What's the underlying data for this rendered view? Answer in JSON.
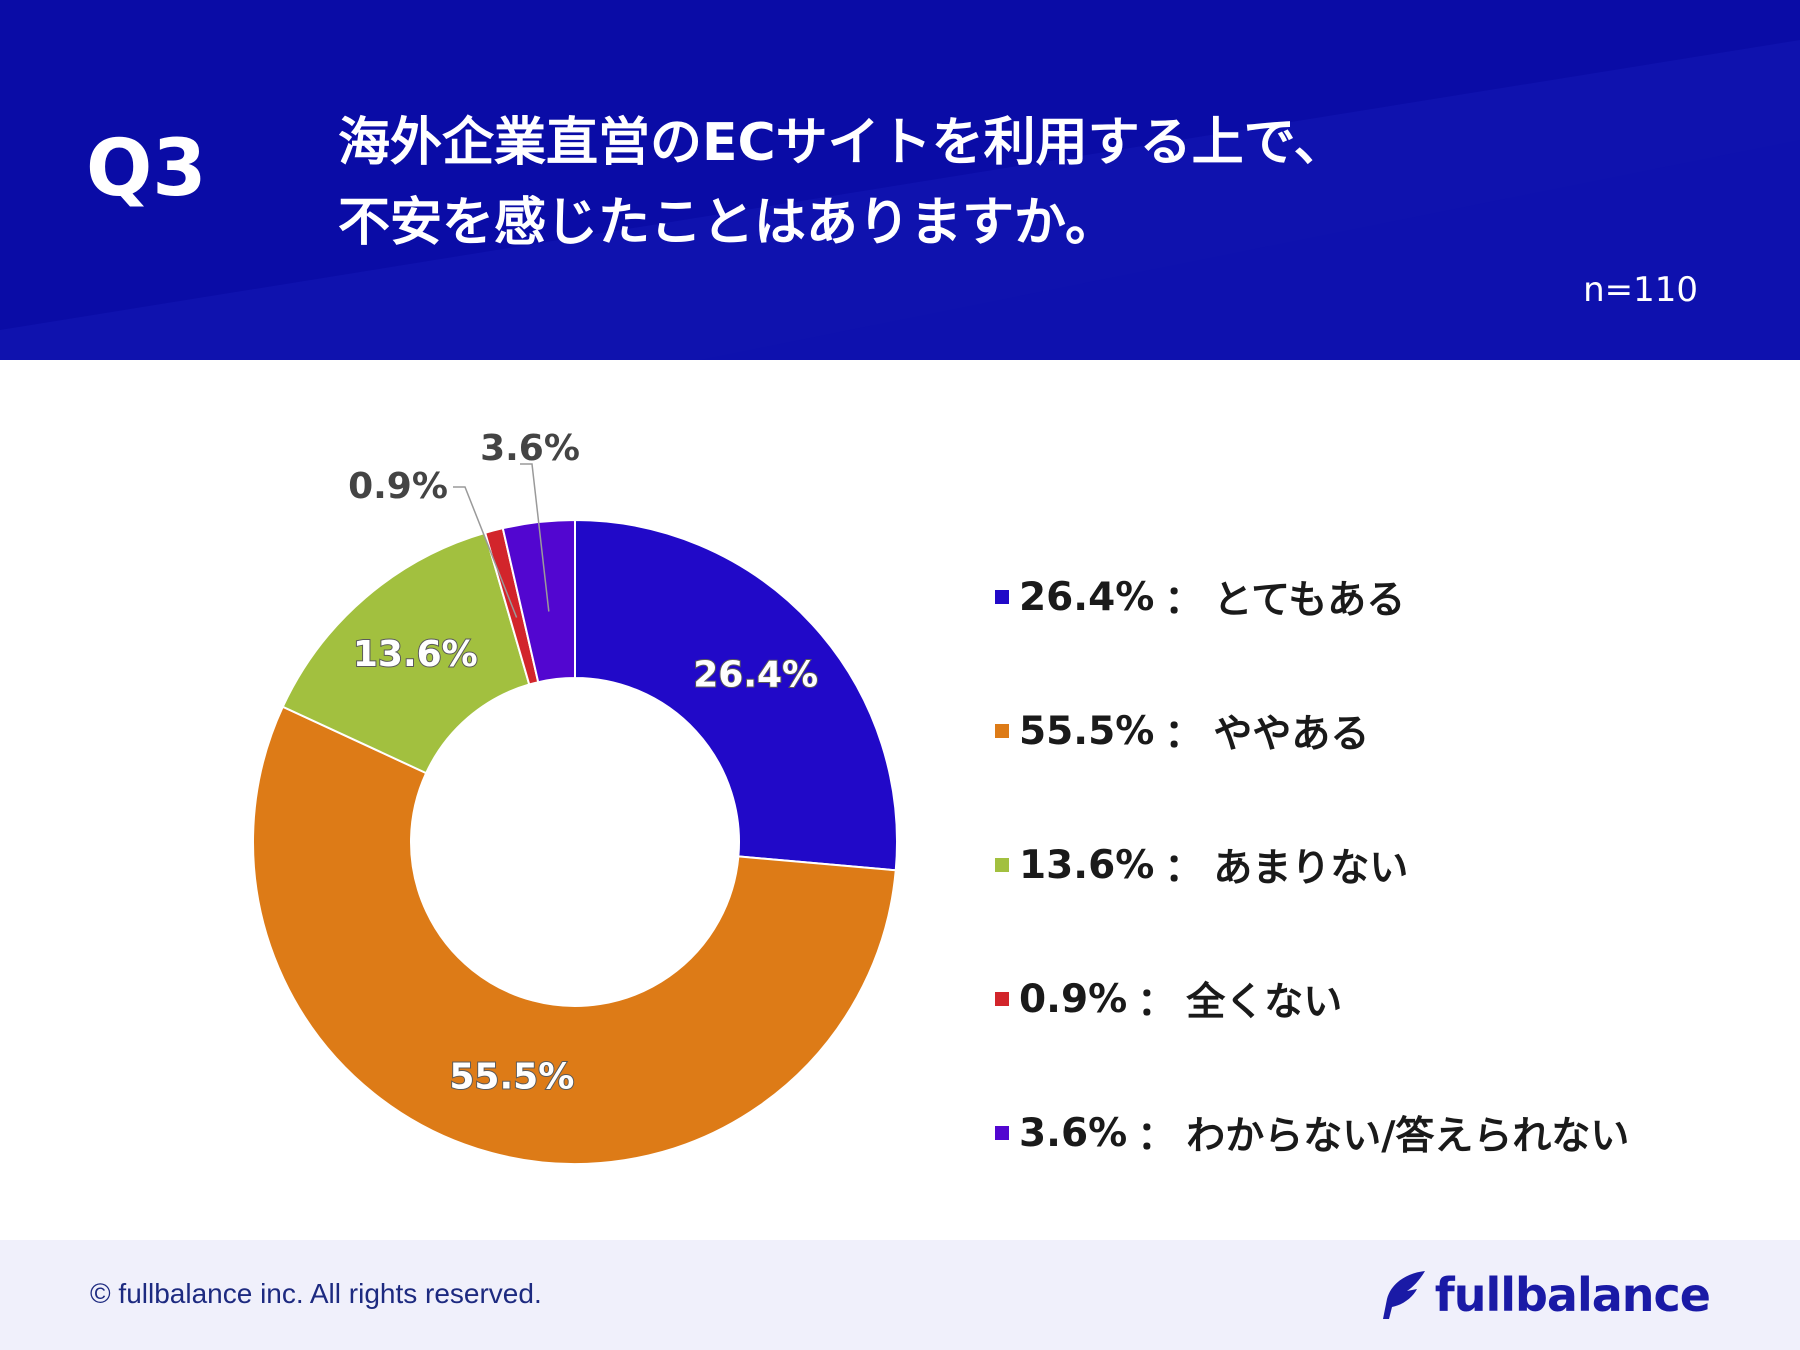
{
  "header": {
    "question_label": "Q3",
    "title_lines": [
      "海外企業直営のECサイトを利用する上で、",
      "不安を感じたことはありますか。"
    ],
    "sample_size": "n=110"
  },
  "colors": {
    "header_bg": "#0a0ca6",
    "footer_bg": "#f0f0fb",
    "brand": "#1a1aa6"
  },
  "chart_data": {
    "type": "pie",
    "variant": "donut",
    "title": "海外企業直営のECサイトを利用する上で、不安を感じたことはありますか。",
    "slices": [
      {
        "label": "とてもある",
        "value": 26.4,
        "display": "26.4%",
        "legend": "26.4%",
        "name": "とてもある",
        "color": "#2109c8",
        "label_inside": true
      },
      {
        "label": "ややある",
        "value": 55.5,
        "display": "55.5%",
        "legend": "55.5%",
        "name": "ややある",
        "color": "#dd7b17",
        "label_inside": true
      },
      {
        "label": "あまりない",
        "value": 13.6,
        "display": "13.6%",
        "legend": "13.6%",
        "name": "あまりない",
        "color": "#a2c03f",
        "label_inside": true
      },
      {
        "label": "全くない",
        "value": 0.9,
        "display": "0.9%",
        "legend": "0.9%",
        "name": "全くない",
        "color": "#d2252b",
        "label_inside": false
      },
      {
        "label": "わからない/答えられない",
        "value": 3.6,
        "display": "3.6%",
        "legend": "3.6%",
        "name": "わからない/答えられない",
        "color": "#5206d0",
        "label_inside": false
      }
    ],
    "legend_separator": "：",
    "legend_position": "right"
  },
  "footer": {
    "copyright": "© fullbalance inc. All rights reserved.",
    "logo_text": "fullbalance"
  }
}
